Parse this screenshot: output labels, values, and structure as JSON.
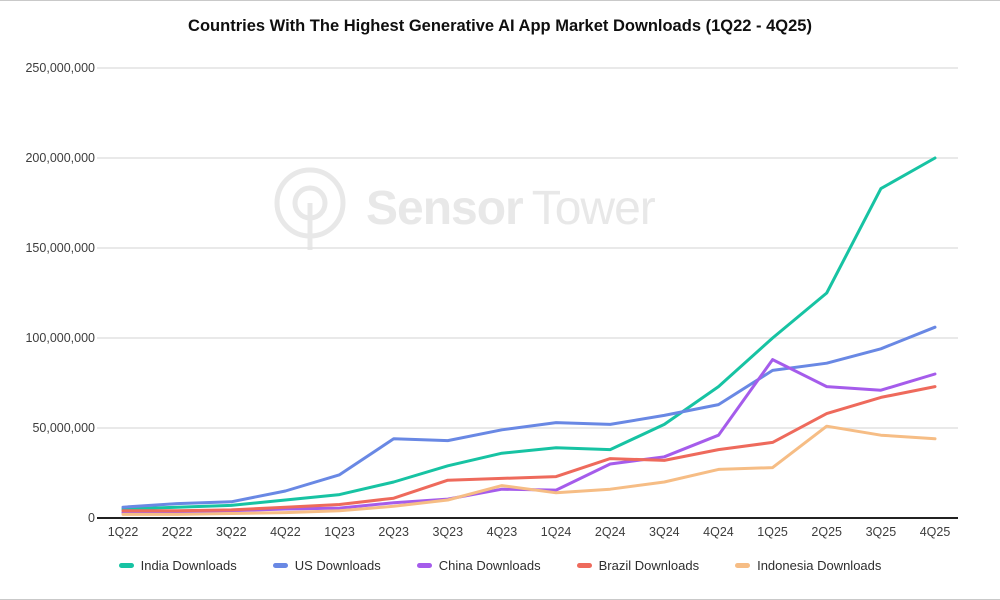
{
  "watermark": {
    "bold": "Sensor",
    "light": "Tower"
  },
  "colors": {
    "background": "#ffffff",
    "grid": "#e2e2e2",
    "axis": "#212121",
    "tick_label": "#3d3d3d",
    "title": "#0f0f0f",
    "legend_text": "#2e2e2e",
    "watermark": "#e8e8e8"
  },
  "chart_data": {
    "type": "line",
    "title": "Countries With The Highest Generative AI App Market Downloads (1Q22 - 4Q25)",
    "categories": [
      "1Q22",
      "2Q22",
      "3Q22",
      "4Q22",
      "1Q23",
      "2Q23",
      "3Q23",
      "4Q23",
      "1Q24",
      "2Q24",
      "3Q24",
      "4Q24",
      "1Q25",
      "2Q25",
      "3Q25",
      "4Q25"
    ],
    "series": [
      {
        "name": "India Downloads",
        "color": "#17c3a3",
        "values": [
          5000000,
          6000000,
          7000000,
          10000000,
          13000000,
          20000000,
          29000000,
          36000000,
          39000000,
          38000000,
          52000000,
          73000000,
          100000000,
          125000000,
          183000000,
          200000000
        ]
      },
      {
        "name": "US Downloads",
        "color": "#6988e4",
        "values": [
          6000000,
          8000000,
          9000000,
          15000000,
          24000000,
          44000000,
          43000000,
          49000000,
          53000000,
          52000000,
          57000000,
          63000000,
          82000000,
          86000000,
          94000000,
          106000000
        ]
      },
      {
        "name": "China Downloads",
        "color": "#a55ceb",
        "values": [
          3000000,
          3500000,
          4000000,
          5000000,
          5500000,
          8500000,
          10500000,
          16000000,
          15500000,
          30000000,
          34000000,
          46000000,
          88000000,
          73000000,
          71000000,
          80000000
        ]
      },
      {
        "name": "Brazil Downloads",
        "color": "#ee6a5c",
        "values": [
          4000000,
          4000000,
          4500000,
          6000000,
          7500000,
          11000000,
          21000000,
          22000000,
          23000000,
          33000000,
          32000000,
          38000000,
          42000000,
          58000000,
          67000000,
          73000000
        ]
      },
      {
        "name": "Indonesia Downloads",
        "color": "#f6bd85",
        "values": [
          2000000,
          2000000,
          2500000,
          3000000,
          4000000,
          6500000,
          10000000,
          18000000,
          14000000,
          16000000,
          20000000,
          27000000,
          28000000,
          51000000,
          46000000,
          44000000
        ]
      }
    ],
    "xlabel": "",
    "ylabel": "",
    "ylim": [
      0,
      250000000
    ],
    "ytick_interval": 50000000,
    "ytick_labels": [
      "0",
      "50,000,000",
      "100,000,000",
      "150,000,000",
      "200,000,000",
      "250,000,000"
    ],
    "grid": true,
    "legend_position": "bottom"
  }
}
